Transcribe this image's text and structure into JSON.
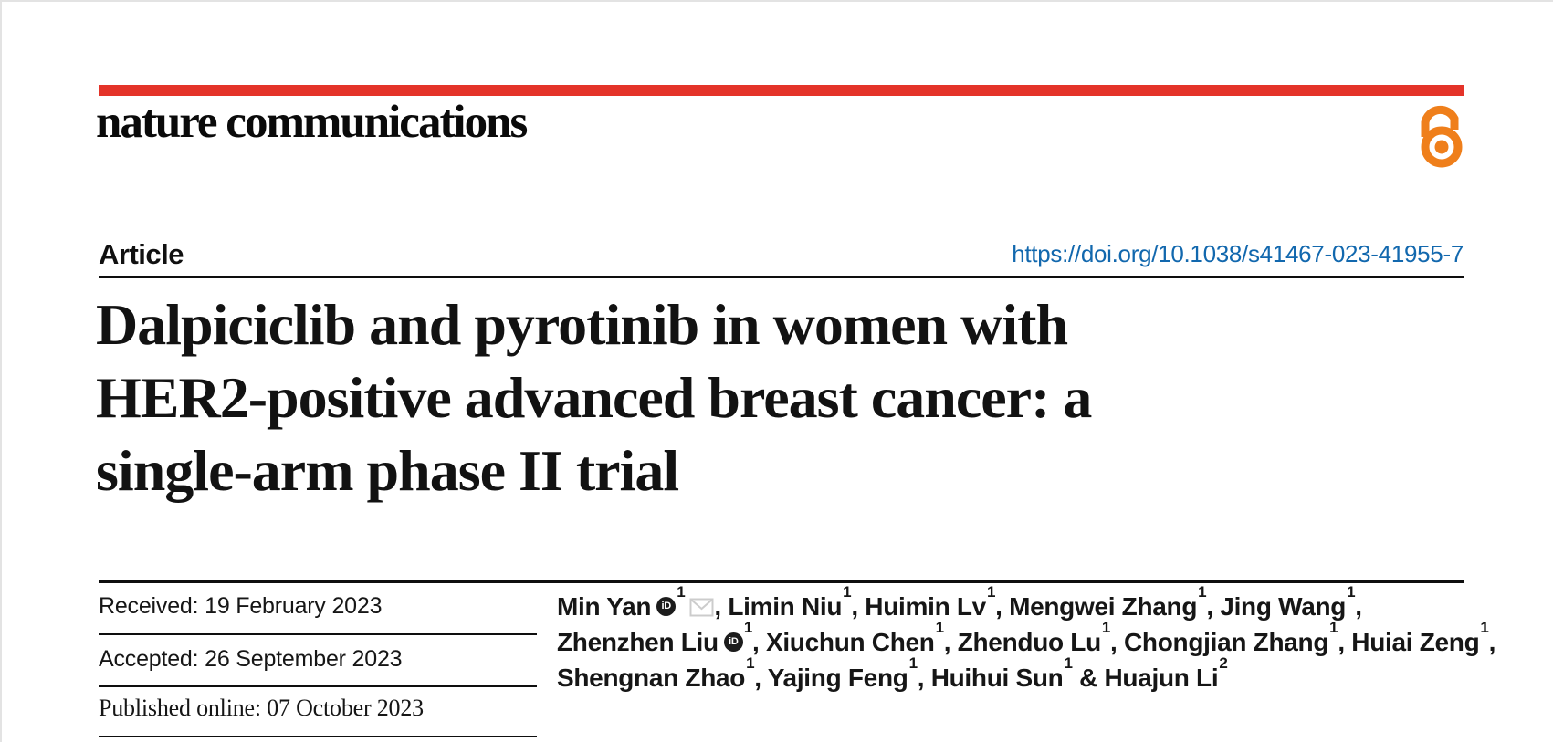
{
  "journal": {
    "name": "nature communications",
    "open_access_icon": "open-lock-icon"
  },
  "header": {
    "article_label": "Article",
    "doi": "https://doi.org/10.1038/s41467-023-41955-7"
  },
  "title_lines": [
    "Dalpiciclib and pyrotinib in women with",
    "HER2-positive advanced breast cancer: a",
    "single-arm phase II trial"
  ],
  "dates": {
    "received": {
      "label": "Received:",
      "value": "19 February 2023"
    },
    "accepted": {
      "label": "Accepted:",
      "value": "26 September 2023"
    },
    "published": {
      "label": "Published online:",
      "value": "07 October 2023"
    }
  },
  "authors": {
    "separator": ",",
    "last_separator": "&",
    "orcid_glyph": "iD",
    "lines": [
      [
        {
          "name": "Min Yan",
          "sup": "1",
          "orcid": true,
          "email": true
        },
        {
          "name": "Limin Niu",
          "sup": "1"
        },
        {
          "name": "Huimin Lv",
          "sup": "1"
        },
        {
          "name": "Mengwei Zhang",
          "sup": "1"
        },
        {
          "name": "Jing Wang",
          "sup": "1"
        }
      ],
      [
        {
          "name": "Zhenzhen Liu",
          "sup": "1",
          "orcid": true
        },
        {
          "name": "Xiuchun Chen",
          "sup": "1"
        },
        {
          "name": "Zhenduo Lu",
          "sup": "1"
        },
        {
          "name": "Chongjian Zhang",
          "sup": "1"
        },
        {
          "name": "Huiai Zeng",
          "sup": "1"
        }
      ],
      [
        {
          "name": "Shengnan Zhao",
          "sup": "1"
        },
        {
          "name": "Yajing Feng",
          "sup": "1"
        },
        {
          "name": "Huihui Sun",
          "sup": "1"
        },
        {
          "name": "Huajun Li",
          "sup": "2"
        }
      ]
    ]
  },
  "colors": {
    "accent_red": "#e43329",
    "doi_blue": "#1268ae",
    "open_access_orange": "#ef7f1b",
    "text_black": "#121212",
    "envelope_gray": "#cccccc"
  }
}
